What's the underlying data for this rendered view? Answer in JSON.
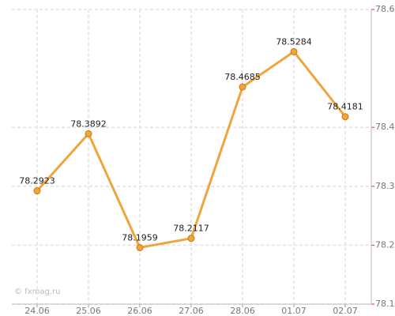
{
  "chart_data": {
    "type": "line",
    "categories": [
      "24.06",
      "25.06",
      "26.06",
      "27.06",
      "28.06",
      "01.07",
      "02.07"
    ],
    "series": [
      {
        "name": null,
        "color": "#f0a53c",
        "values": [
          78.2923,
          78.3892,
          78.1959,
          78.2117,
          78.4685,
          78.5284,
          78.4181
        ]
      }
    ],
    "ylim": [
      78.1,
      78.6
    ],
    "yticks": [
      78.1,
      78.2,
      78.3,
      78.4,
      78.6
    ],
    "grid": true,
    "watermark": "© fxmag.ru"
  }
}
